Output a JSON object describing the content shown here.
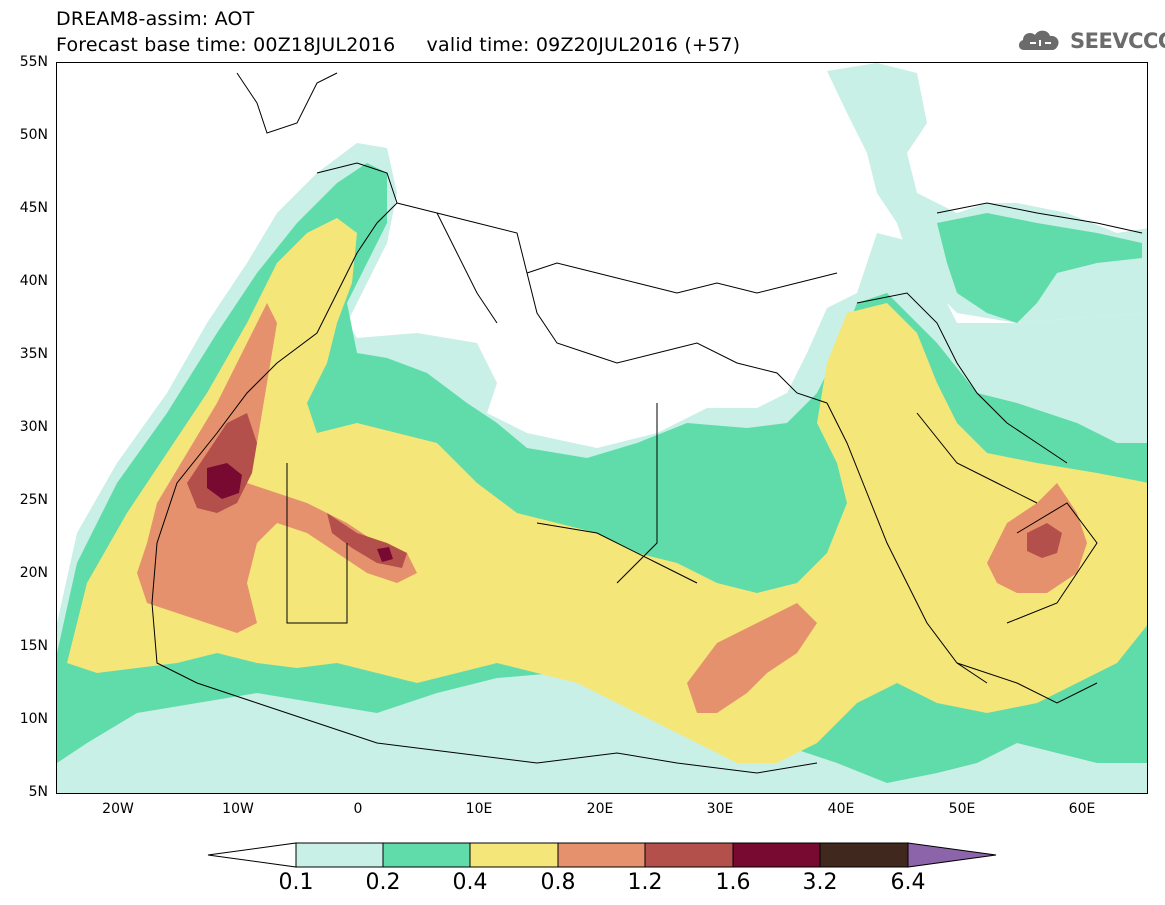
{
  "header": {
    "title_line1": "DREAM8-assim: AOT",
    "title_line2": "Forecast base time: 00Z18JUL2016     valid time: 09Z20JUL2016 (+57)"
  },
  "logo": {
    "icon": "cloud-icon",
    "text": "SEEVCCC",
    "color": "#6b6b6b"
  },
  "map": {
    "lat_labels": [
      "55N",
      "50N",
      "45N",
      "40N",
      "35N",
      "30N",
      "25N",
      "20N",
      "15N",
      "10N",
      "5N"
    ],
    "lon_labels": [
      "20W",
      "10W",
      "0",
      "10E",
      "20E",
      "30E",
      "40E",
      "50E",
      "60E"
    ]
  },
  "legend": {
    "levels": [
      "0.1",
      "0.2",
      "0.4",
      "0.8",
      "1.2",
      "1.6",
      "3.2",
      "6.4"
    ],
    "colors": [
      "#c8f0e6",
      "#5fdcaa",
      "#f5e67a",
      "#e6916e",
      "#b4504b",
      "#780a32",
      "#41281e",
      "#8c64aa"
    ],
    "below_color": "#ffffff"
  }
}
